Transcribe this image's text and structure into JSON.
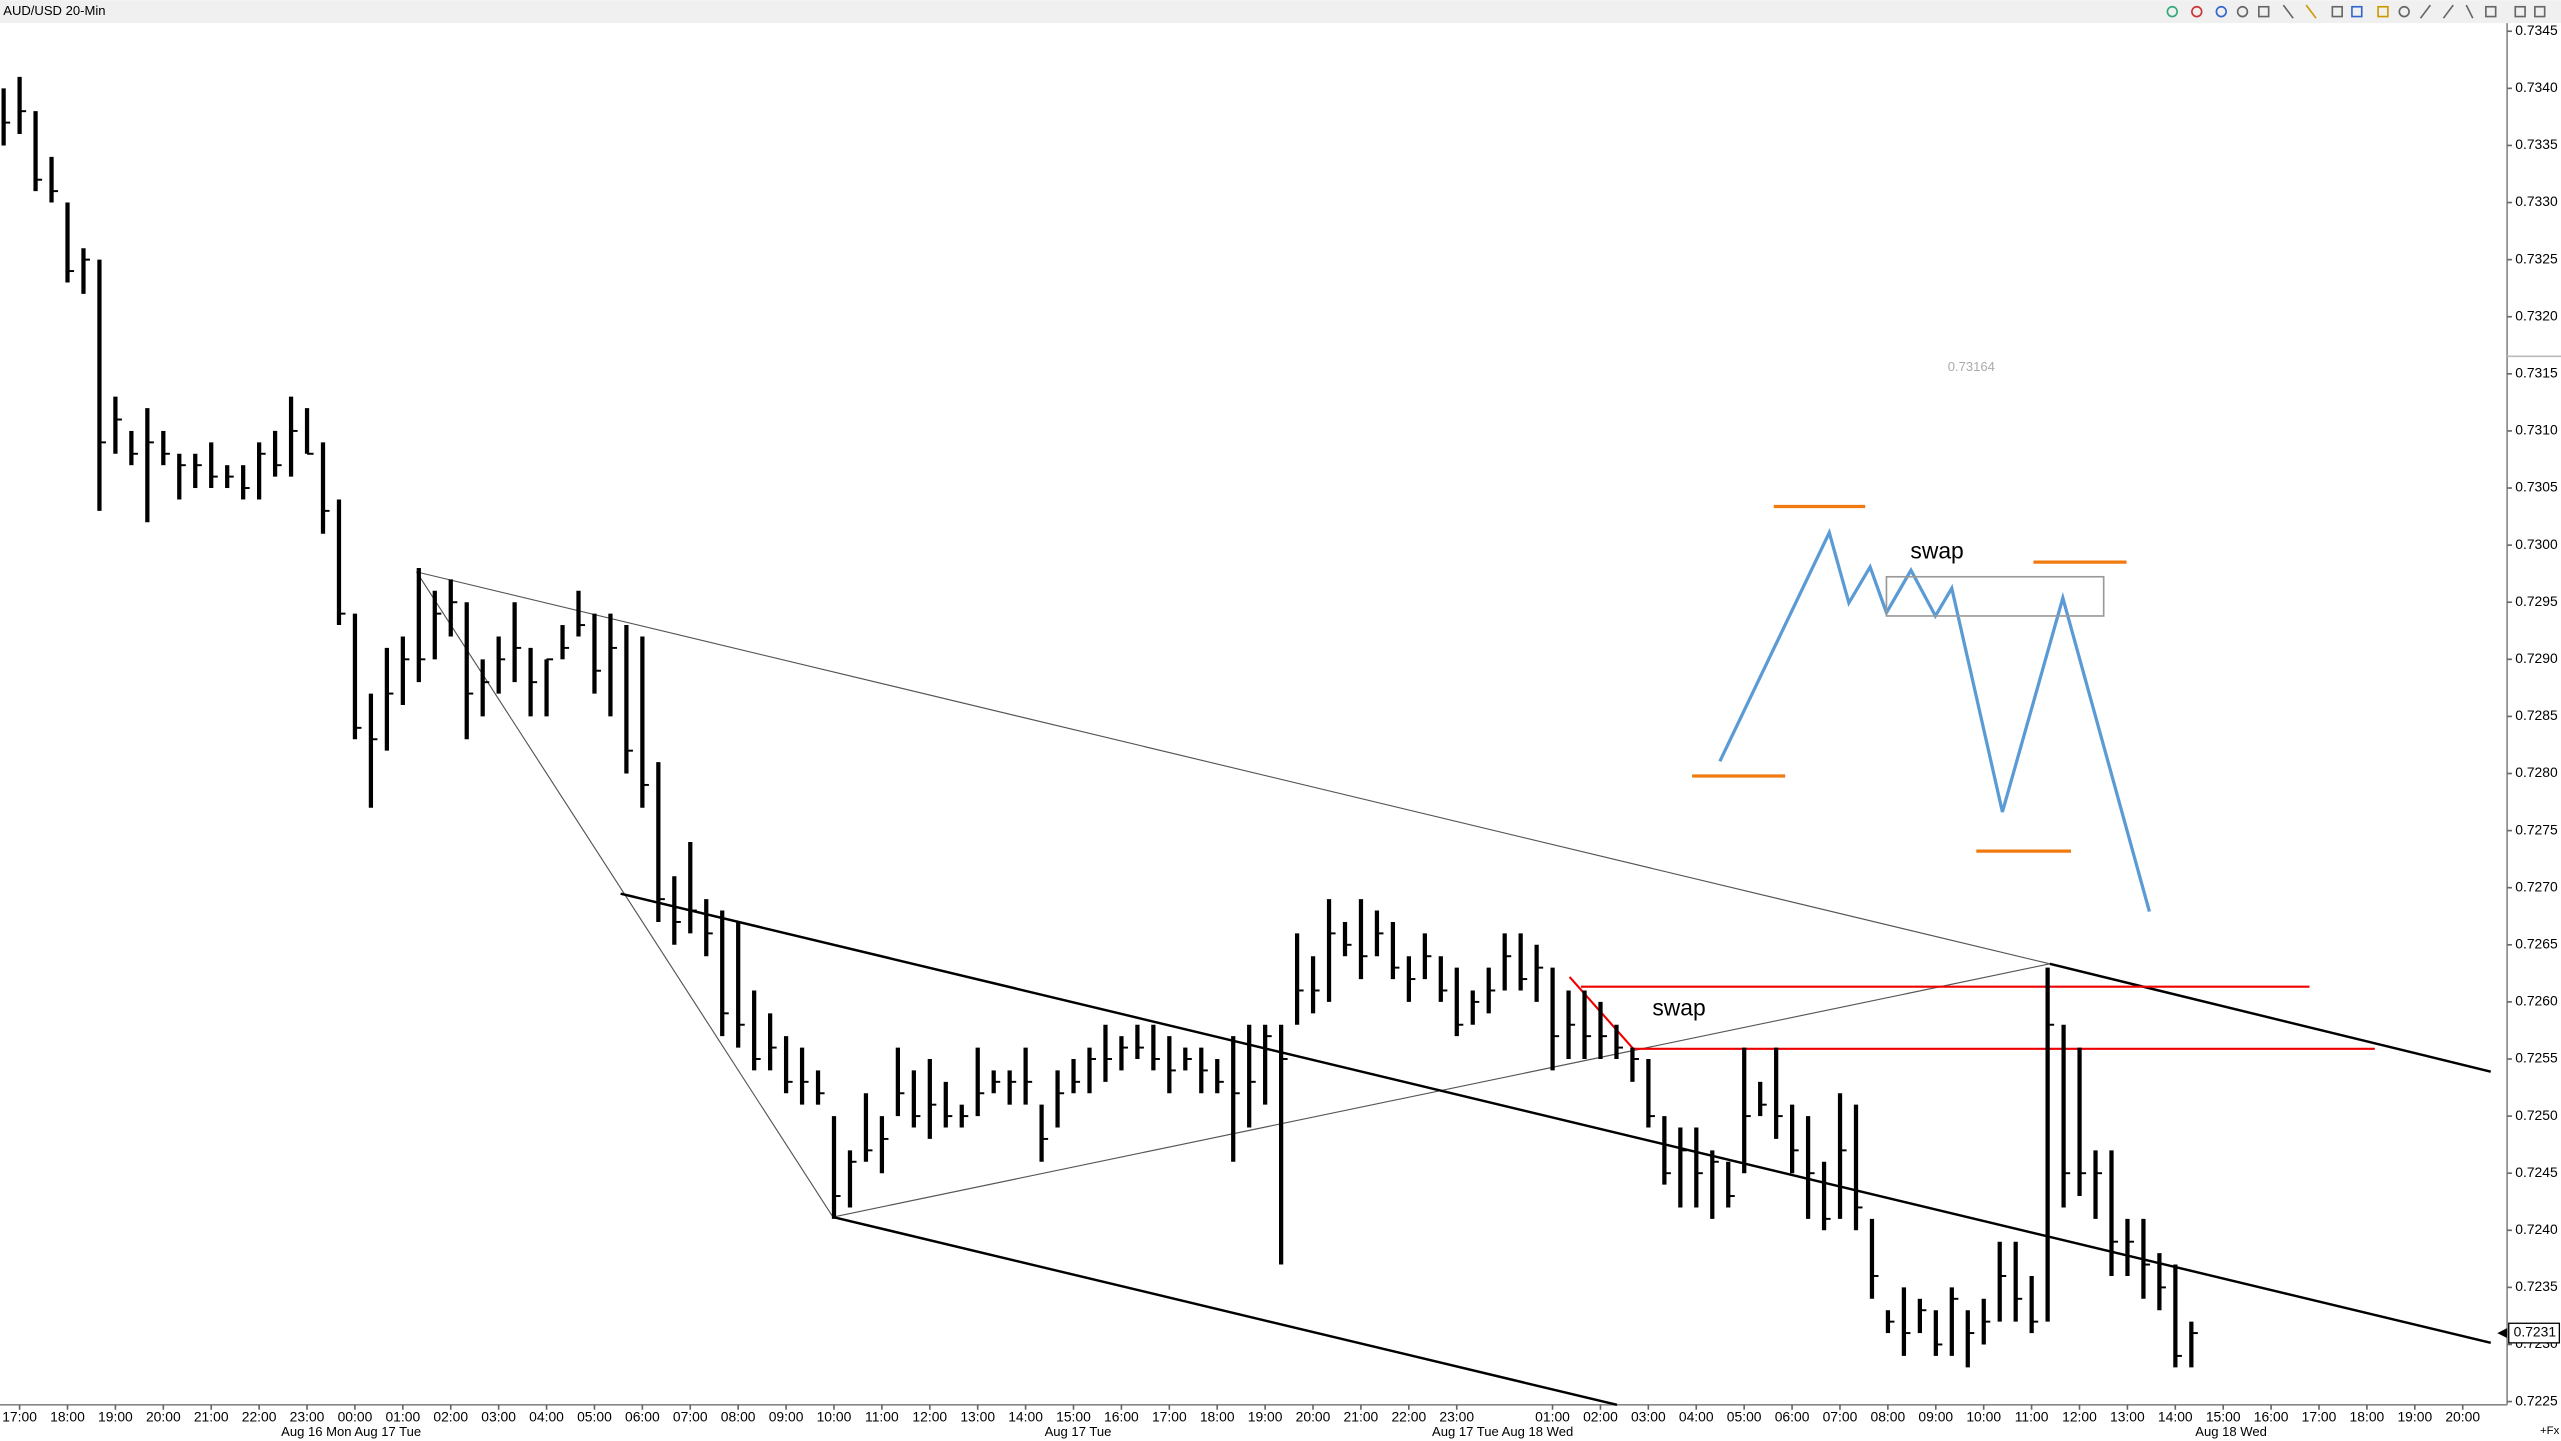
{
  "chart_data": {
    "type": "ohlc",
    "title": "AUD/USD 20-Min",
    "high": [
      0.734,
      0.7341,
      0.7338,
      0.7334,
      0.733,
      0.7326,
      0.7325,
      0.7313,
      0.731,
      0.7312,
      0.731,
      0.7308,
      0.7308,
      0.7309,
      0.7307,
      0.7307,
      0.7309,
      0.731,
      0.7313,
      0.7312,
      0.7309,
      0.7304,
      0.7294,
      0.7287,
      0.7291,
      0.7292,
      0.7298,
      0.7296,
      0.7297,
      0.7295,
      0.729,
      0.7292,
      0.7295,
      0.7291,
      0.729,
      0.7293,
      0.7296,
      0.7294,
      0.7294,
      0.7293,
      0.7292,
      0.7281,
      0.7271,
      0.7274,
      0.7269,
      0.7268,
      0.7267,
      0.7261,
      0.7259,
      0.7257,
      0.7256,
      0.7254,
      0.725,
      0.7247,
      0.7252,
      0.725,
      0.7256,
      0.7254,
      0.7255,
      0.7253,
      0.7251,
      0.7256,
      0.7254,
      0.7254,
      0.7256,
      0.7251,
      0.7254,
      0.7255,
      0.7256,
      0.7258,
      0.7257,
      0.7258,
      0.7258,
      0.7257,
      0.7256,
      0.7256,
      0.7255,
      0.7257,
      0.7258,
      0.7258,
      0.7258,
      0.7266,
      0.7264,
      0.7269,
      0.7267,
      0.7269,
      0.7268,
      0.7267,
      0.7264,
      0.7266,
      0.7264,
      0.7263,
      0.7261,
      0.7263,
      0.7266,
      0.7266,
      0.7265,
      0.7263,
      0.7261,
      0.7261,
      0.726,
      0.7258,
      0.7256,
      0.7255,
      0.725,
      0.7249,
      0.7249,
      0.7247,
      0.7246,
      0.7256,
      0.7253,
      0.7256,
      0.7251,
      0.725,
      0.7246,
      0.7252,
      0.7251,
      0.7241,
      0.7233,
      0.7235,
      0.7234,
      0.7233,
      0.7235,
      0.7233,
      0.7234,
      0.7239,
      0.7239,
      0.7236,
      0.7263,
      0.7258,
      0.7256,
      0.7247,
      0.7247,
      0.7241,
      0.7241,
      0.7238,
      0.7237,
      0.7232
    ],
    "low": [
      0.7335,
      0.7336,
      0.7331,
      0.733,
      0.7323,
      0.7322,
      0.7303,
      0.7308,
      0.7307,
      0.7302,
      0.7307,
      0.7304,
      0.7305,
      0.7305,
      0.7305,
      0.7304,
      0.7304,
      0.7306,
      0.7306,
      0.7308,
      0.7301,
      0.7293,
      0.7283,
      0.7277,
      0.7282,
      0.7286,
      0.7288,
      0.729,
      0.7292,
      0.7283,
      0.7285,
      0.7287,
      0.7288,
      0.7285,
      0.7285,
      0.729,
      0.7292,
      0.7287,
      0.7285,
      0.728,
      0.7277,
      0.7267,
      0.7265,
      0.7266,
      0.7264,
      0.7257,
      0.7256,
      0.7254,
      0.7254,
      0.7252,
      0.7251,
      0.7251,
      0.7241,
      0.7242,
      0.7246,
      0.7245,
      0.725,
      0.7249,
      0.7248,
      0.7249,
      0.7249,
      0.725,
      0.7252,
      0.7251,
      0.7251,
      0.7246,
      0.7249,
      0.7252,
      0.7252,
      0.7253,
      0.7254,
      0.7255,
      0.7254,
      0.7252,
      0.7254,
      0.7252,
      0.7252,
      0.7246,
      0.7249,
      0.7251,
      0.7237,
      0.7258,
      0.7259,
      0.726,
      0.7264,
      0.7262,
      0.7264,
      0.7262,
      0.726,
      0.7262,
      0.726,
      0.7257,
      0.7258,
      0.7259,
      0.7261,
      0.7261,
      0.726,
      0.7254,
      0.7255,
      0.7255,
      0.7255,
      0.7255,
      0.7253,
      0.7249,
      0.7244,
      0.7242,
      0.7242,
      0.7241,
      0.7242,
      0.7245,
      0.725,
      0.7248,
      0.7245,
      0.7241,
      0.724,
      0.7241,
      0.724,
      0.7234,
      0.7231,
      0.7229,
      0.7231,
      0.7229,
      0.7229,
      0.7228,
      0.723,
      0.7232,
      0.7232,
      0.7231,
      0.7232,
      0.7242,
      0.7243,
      0.7241,
      0.7236,
      0.7236,
      0.7234,
      0.7233,
      0.7228,
      0.7228
    ],
    "close": [
      0.7337,
      0.7338,
      0.7332,
      0.7331,
      0.7324,
      0.7325,
      0.7309,
      0.7311,
      0.7308,
      0.7309,
      0.7308,
      0.7307,
      0.7307,
      0.7306,
      0.7306,
      0.7305,
      0.7308,
      0.7307,
      0.731,
      0.7308,
      0.7303,
      0.7294,
      0.7284,
      0.7283,
      0.7287,
      0.729,
      0.729,
      0.7294,
      0.7295,
      0.7287,
      0.7288,
      0.729,
      0.7291,
      0.7288,
      0.729,
      0.7291,
      0.7293,
      0.7289,
      0.7291,
      0.7282,
      0.7279,
      0.7269,
      0.7267,
      0.7268,
      0.7266,
      0.7259,
      0.7258,
      0.7255,
      0.7256,
      0.7253,
      0.7253,
      0.7252,
      0.7243,
      0.7246,
      0.7247,
      0.7248,
      0.7252,
      0.725,
      0.7251,
      0.725,
      0.725,
      0.7252,
      0.7253,
      0.7253,
      0.7253,
      0.7248,
      0.7252,
      0.7253,
      0.7255,
      0.7255,
      0.7256,
      0.7256,
      0.7255,
      0.7254,
      0.7255,
      0.7254,
      0.7253,
      0.7252,
      0.7253,
      0.7257,
      0.7255,
      0.7261,
      0.7261,
      0.7266,
      0.7265,
      0.7264,
      0.7266,
      0.7263,
      0.7262,
      0.7264,
      0.7261,
      0.7258,
      0.726,
      0.7261,
      0.7264,
      0.7262,
      0.7263,
      0.7257,
      0.7258,
      0.7257,
      0.7257,
      0.7256,
      0.7255,
      0.725,
      0.7245,
      0.7247,
      0.7245,
      0.7246,
      0.7243,
      0.725,
      0.7251,
      0.725,
      0.7247,
      0.7245,
      0.7241,
      0.7247,
      0.7242,
      0.7236,
      0.7232,
      0.7231,
      0.7233,
      0.723,
      0.7234,
      0.7231,
      0.7232,
      0.7236,
      0.7234,
      0.7232,
      0.7258,
      0.7245,
      0.7245,
      0.7245,
      0.7239,
      0.7239,
      0.7237,
      0.7235,
      0.7229,
      0.7231
    ],
    "categories": [
      "17:00",
      "18:00",
      "19:00",
      "20:00",
      "21:00",
      "22:00",
      "23:00",
      "00:00",
      "01:00",
      "02:00",
      "03:00",
      "04:00",
      "05:00",
      "06:00",
      "07:00",
      "08:00",
      "09:00",
      "10:00",
      "11:00",
      "12:00",
      "13:00",
      "14:00",
      "15:00",
      "16:00",
      "17:00",
      "18:00",
      "19:00",
      "20:00",
      "21:00",
      "22:00",
      "23:00",
      null,
      "01:00",
      "02:00",
      "03:00",
      "04:00",
      "05:00",
      "06:00",
      "07:00",
      "08:00",
      "09:00",
      "10:00",
      "11:00",
      "12:00",
      "13:00",
      "14:00",
      "15:00",
      "16:00",
      "17:00",
      "18:00",
      "19:00",
      "20:00"
    ],
    "date_labels": [
      "Aug 16 Mon Aug 17 Tue",
      "Aug 17 Tue",
      "Aug 17 Tue Aug 18 Wed",
      "Aug 18 Wed"
    ],
    "ylim": [
      0.7225,
      0.7345
    ],
    "yticks": [
      0.7345,
      {
        "value": 0.734,
        "label": "0.7340"
      },
      0.7335,
      {
        "value": 0.733,
        "label": "0.7330"
      },
      0.7325,
      {
        "value": 0.732,
        "label": "0.7320"
      },
      0.7315,
      {
        "value": 0.731,
        "label": "0.7310"
      },
      0.7305,
      {
        "value": 0.73,
        "label": "0.7300"
      },
      0.7295,
      {
        "value": 0.729,
        "label": "0.7290"
      },
      0.7285,
      {
        "value": 0.728,
        "label": "0.7280"
      },
      0.7275,
      {
        "value": 0.727,
        "label": "0.7270"
      },
      0.7265,
      {
        "value": 0.726,
        "label": "0.7260"
      },
      0.7255,
      {
        "value": 0.725,
        "label": "0.7250"
      },
      0.7245,
      {
        "value": 0.724,
        "label": "0.7240"
      },
      0.7235,
      {
        "value": 0.723,
        "label": "0.7230"
      },
      0.7225
    ],
    "last_price": 0.7231,
    "level_label": "0.73164",
    "annotations": [
      "swap",
      "swap"
    ],
    "corner_label": "+Fx",
    "color": "#000000"
  }
}
